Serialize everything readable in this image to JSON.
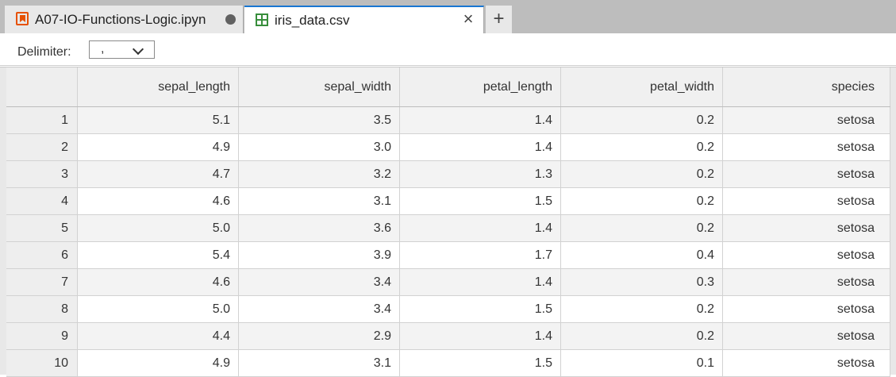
{
  "tabs": [
    {
      "label": "A07-IO-Functions-Logic.ipyn",
      "icon": "notebook-icon",
      "dirty": true
    },
    {
      "label": "iris_data.csv",
      "icon": "grid-icon",
      "active": true
    }
  ],
  "toolbar": {
    "delimiter_label": "Delimiter:",
    "delimiter_value": ","
  },
  "table": {
    "columns": [
      "sepal_length",
      "sepal_width",
      "petal_length",
      "petal_width",
      "species"
    ],
    "rows": [
      {
        "index": "1",
        "cells": [
          "5.1",
          "3.5",
          "1.4",
          "0.2",
          "setosa"
        ]
      },
      {
        "index": "2",
        "cells": [
          "4.9",
          "3.0",
          "1.4",
          "0.2",
          "setosa"
        ]
      },
      {
        "index": "3",
        "cells": [
          "4.7",
          "3.2",
          "1.3",
          "0.2",
          "setosa"
        ]
      },
      {
        "index": "4",
        "cells": [
          "4.6",
          "3.1",
          "1.5",
          "0.2",
          "setosa"
        ]
      },
      {
        "index": "5",
        "cells": [
          "5.0",
          "3.6",
          "1.4",
          "0.2",
          "setosa"
        ]
      },
      {
        "index": "6",
        "cells": [
          "5.4",
          "3.9",
          "1.7",
          "0.4",
          "setosa"
        ]
      },
      {
        "index": "7",
        "cells": [
          "4.6",
          "3.4",
          "1.4",
          "0.3",
          "setosa"
        ]
      },
      {
        "index": "8",
        "cells": [
          "5.0",
          "3.4",
          "1.5",
          "0.2",
          "setosa"
        ]
      },
      {
        "index": "9",
        "cells": [
          "4.4",
          "2.9",
          "1.4",
          "0.2",
          "setosa"
        ]
      },
      {
        "index": "10",
        "cells": [
          "4.9",
          "3.1",
          "1.5",
          "0.1",
          "setosa"
        ]
      }
    ]
  },
  "colors": {
    "accent": "#1976d2",
    "notebook_icon": "#e65100",
    "csv_icon": "#388e3c"
  }
}
